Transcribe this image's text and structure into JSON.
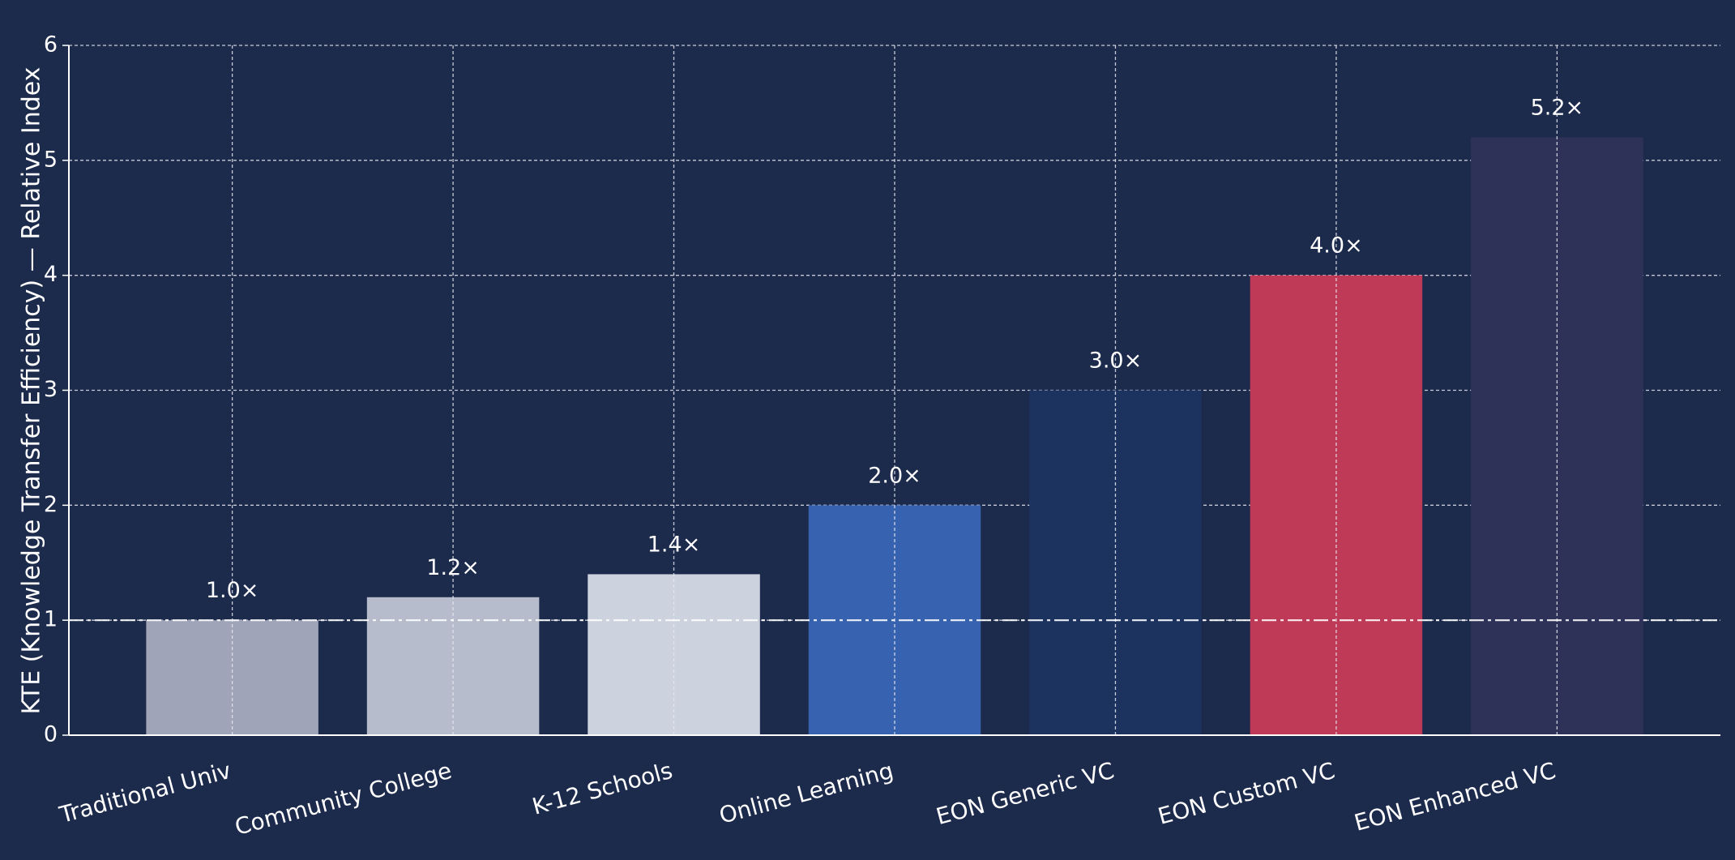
{
  "chart_data": {
    "type": "bar",
    "ylabel": "KTE (Knowledge Transfer Efficiency) — Relative Index",
    "categories": [
      "Traditional Univ",
      "Community College",
      "K-12 Schools",
      "Online Learning",
      "EON Generic VC",
      "EON Custom VC",
      "EON Enhanced VC"
    ],
    "values": [
      1.0,
      1.2,
      1.4,
      2.0,
      3.0,
      4.0,
      5.2
    ],
    "value_labels": [
      "1.0×",
      "1.2×",
      "1.4×",
      "2.0×",
      "3.0×",
      "4.0×",
      "5.2×"
    ],
    "colors": [
      "#a0a4b8",
      "#b6bccb",
      "#cdd2df",
      "#3762b0",
      "#1c3360",
      "#bf3a56",
      "#2e3259"
    ],
    "ylim": [
      0,
      6
    ],
    "yticks": [
      0,
      1,
      2,
      3,
      4,
      5,
      6
    ],
    "reference_line": 1,
    "grid": true
  }
}
